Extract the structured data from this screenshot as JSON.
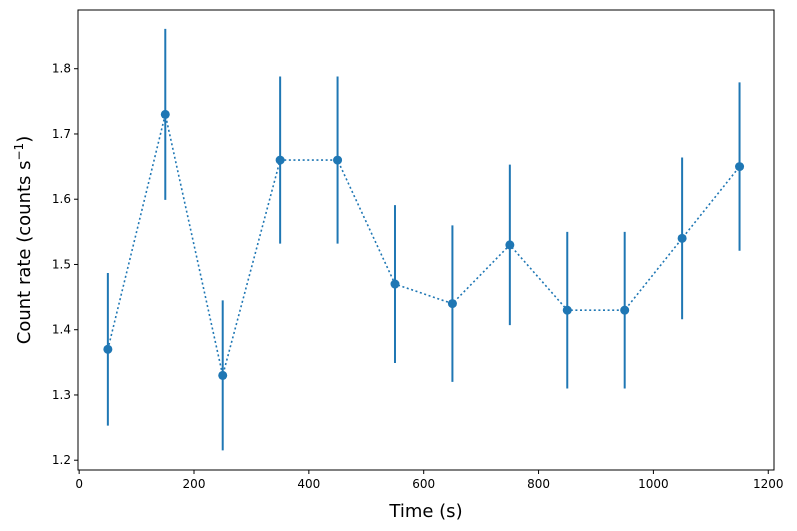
{
  "chart_data": {
    "type": "scatter",
    "xlabel": "Time (s)",
    "ylabel_main": "Count rate (counts s",
    "ylabel_sup": "−1",
    "ylabel_close": ")",
    "xlim": [
      -2,
      1210
    ],
    "ylim": [
      1.185,
      1.89
    ],
    "xticks": [
      0,
      200,
      400,
      600,
      800,
      1000,
      1200
    ],
    "xtick_labels": [
      "0",
      "200",
      "400",
      "600",
      "800",
      "1000",
      "1200"
    ],
    "yticks": [
      1.2,
      1.3,
      1.4,
      1.5,
      1.6,
      1.7,
      1.8
    ],
    "ytick_labels": [
      "1.2",
      "1.3",
      "1.4",
      "1.5",
      "1.6",
      "1.7",
      "1.8"
    ],
    "line_style": "dotted",
    "color": "#1f77b4",
    "grid": false,
    "series": [
      {
        "x": [
          50,
          150,
          250,
          350,
          450,
          550,
          650,
          750,
          850,
          950,
          1050,
          1150
        ],
        "y": [
          1.37,
          1.73,
          1.33,
          1.66,
          1.66,
          1.47,
          1.44,
          1.53,
          1.43,
          1.43,
          1.54,
          1.65
        ],
        "yerr": [
          0.117,
          0.131,
          0.115,
          0.128,
          0.128,
          0.121,
          0.12,
          0.123,
          0.12,
          0.12,
          0.124,
          0.129
        ]
      }
    ]
  }
}
